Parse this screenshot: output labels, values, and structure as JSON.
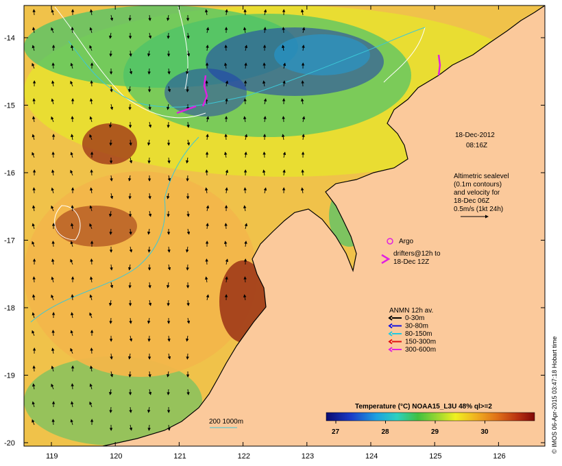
{
  "map": {
    "date": "18-Dec-2012",
    "time": "08:16Z",
    "latitude_ticks": [
      "-14",
      "-15",
      "-16",
      "-17",
      "-18",
      "-19",
      "-20"
    ],
    "longitude_ticks": [
      "119",
      "120",
      "121",
      "122",
      "123",
      "124",
      "125",
      "126"
    ],
    "colors": {
      "land": "#fbc99b",
      "ocean_warm": "#f2b64a",
      "ocean_mid": "#e8e030",
      "ocean_cool": "#4cc36a",
      "ocean_cold": "#1e3ab0",
      "plume": "#a03a18",
      "contour": "#ffffff",
      "isobath": "#3cc8d8"
    }
  },
  "altimetry": {
    "line1": "Altimetric sealevel",
    "line2": "(0.1m contours)",
    "line3": "and velocity for",
    "line4": "18-Dec 06Z",
    "line5": "0.5m/s (1kt 24h)"
  },
  "argo": {
    "label": "Argo",
    "color": "#e020e0"
  },
  "drifters": {
    "line1": "drifters@12h to",
    "line2": "18-Dec 12Z",
    "color": "#e020e0"
  },
  "anmn": {
    "title": "ANMN 12h av.",
    "items": [
      {
        "label": "0-30m",
        "color": "#000000"
      },
      {
        "label": "30-80m",
        "color": "#1010e0"
      },
      {
        "label": "80-150m",
        "color": "#20c8e0"
      },
      {
        "label": "150-300m",
        "color": "#e01010"
      },
      {
        "label": "300-600m",
        "color": "#e020e0"
      }
    ]
  },
  "isobath": {
    "label": "200  1000m"
  },
  "colorbar": {
    "title": "Temperature (°C) NOAA15_L3U 48% ql>=2",
    "ticks": [
      "27",
      "28",
      "29",
      "30"
    ]
  },
  "credit": "© IMOS 06-Apr-2015 03:47:18 Hobart time"
}
